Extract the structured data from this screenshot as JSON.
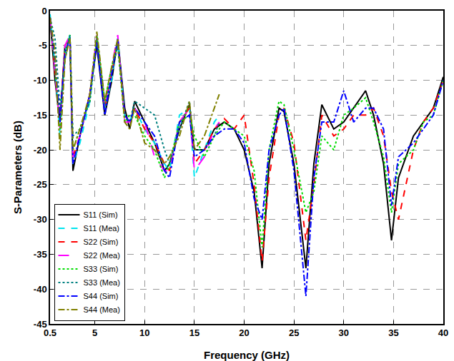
{
  "chart_data": {
    "type": "line",
    "x_label": "Frequency (GHz)",
    "y_label": "S-Parameters (dB)",
    "xlim": [
      0.5,
      40
    ],
    "xticks": [
      0.5,
      5,
      10,
      15,
      20,
      25,
      30,
      35,
      40
    ],
    "ylim": [
      -45,
      0
    ],
    "yticks": [
      -45,
      -40,
      -35,
      -30,
      -25,
      -20,
      -15,
      -10,
      -5,
      0
    ],
    "grid": true,
    "legend": "lower left",
    "series": [
      {
        "name": "S11 (Sim)",
        "color": "#000000",
        "line_style": "solid",
        "x": [
          0.5,
          1,
          1.5,
          2,
          2.5,
          2.8,
          3.5,
          4.5,
          5.2,
          6,
          6.7,
          7.3,
          8,
          8.5,
          9,
          10,
          11,
          12,
          12.5,
          13.5,
          14.5,
          15,
          16,
          17,
          18,
          19,
          20,
          21,
          21.8,
          22.5,
          23.5,
          24,
          25,
          26.2,
          27,
          27.8,
          29,
          30,
          31,
          32.2,
          33,
          34,
          34.8,
          35.5,
          37,
          38,
          39,
          40
        ],
        "values": [
          -1,
          -10,
          -16,
          -5,
          -4,
          -23,
          -18,
          -12,
          -5,
          -15,
          -10,
          -4,
          -14,
          -17,
          -13,
          -16,
          -19,
          -23,
          -22,
          -17,
          -13.5,
          -20,
          -20,
          -17,
          -16,
          -17,
          -20,
          -26,
          -37,
          -22,
          -14,
          -14.5,
          -22,
          -37,
          -22,
          -13.5,
          -17,
          -16,
          -14,
          -11.5,
          -15,
          -22,
          -33,
          -24,
          -18,
          -16,
          -14,
          -9.5
        ]
      },
      {
        "name": "S11 (Mea)",
        "color": "#00e5ee",
        "line_style": "dash",
        "x": [
          0.5,
          1,
          1.5,
          2,
          2.5,
          2.8,
          3.5,
          4.5,
          5.2,
          6,
          6.7,
          7.3,
          8,
          8.5,
          9,
          10,
          11,
          12,
          12.5,
          13.5,
          14.5,
          15,
          16,
          17,
          17.5
        ],
        "values": [
          -0.5,
          -8,
          -18,
          -6,
          -3.5,
          -22,
          -19,
          -13,
          -4,
          -14,
          -10,
          -4,
          -15,
          -16,
          -14,
          -17,
          -19,
          -22,
          -23,
          -15,
          -14,
          -24,
          -20,
          -16,
          -15
        ]
      },
      {
        "name": "S22 (Sim)",
        "color": "#ff0000",
        "line_style": "dash",
        "x": [
          0.5,
          1,
          1.5,
          2,
          2.5,
          2.8,
          3.5,
          4.5,
          5.2,
          6,
          6.7,
          7.3,
          8,
          8.5,
          9,
          10,
          11,
          12,
          12.5,
          13.5,
          14.5,
          15,
          16,
          17,
          18,
          19,
          20,
          21,
          21.8,
          22.5,
          23.5,
          24,
          25,
          26.2,
          27,
          27.8,
          29,
          30,
          31,
          32.2,
          33,
          34,
          34.8,
          35.5,
          37,
          38,
          39,
          40
        ],
        "values": [
          -1,
          -9,
          -15,
          -5,
          -4,
          -21,
          -18,
          -12,
          -4,
          -14,
          -9,
          -4.5,
          -15,
          -16,
          -14,
          -17,
          -19,
          -22,
          -23,
          -16,
          -14,
          -22,
          -20,
          -17,
          -15.5,
          -17,
          -15,
          -25,
          -36,
          -24,
          -15,
          -14,
          -19,
          -33,
          -25,
          -15,
          -18,
          -17,
          -15,
          -15,
          -14,
          -18,
          -26,
          -30,
          -20,
          -16,
          -14,
          -10
        ]
      },
      {
        "name": "S22 (Mea)",
        "color": "#ff00ff",
        "line_style": "longdash",
        "x": [
          0.5,
          1,
          1.5,
          2,
          2.5,
          2.8,
          3.5,
          4.5,
          5.2,
          6,
          6.7,
          7.3,
          8,
          8.5,
          9,
          10,
          11,
          12,
          12.5,
          13.5,
          14.5,
          15,
          16,
          17,
          17.5
        ],
        "values": [
          -1,
          -9,
          -17,
          -5,
          -3.5,
          -21,
          -18,
          -12,
          -3.5,
          -14,
          -8,
          -3.5,
          -16,
          -16,
          -14,
          -16,
          -21,
          -23,
          -23,
          -16,
          -14,
          -23,
          -21,
          -17,
          -16
        ]
      },
      {
        "name": "S33 (Sim)",
        "color": "#00dd00",
        "line_style": "dot",
        "x": [
          0.5,
          1,
          1.5,
          2,
          2.5,
          2.8,
          3.5,
          4.5,
          5.2,
          6,
          6.7,
          7.3,
          8,
          8.5,
          9,
          10,
          11,
          12,
          12.5,
          13.5,
          14.5,
          15,
          16,
          17,
          18,
          19,
          20,
          21,
          21.8,
          22.5,
          23.5,
          24,
          25,
          26.2,
          27,
          27.8,
          29,
          30,
          31,
          32.2,
          33,
          34,
          34.8,
          35.5,
          37,
          38,
          39,
          40
        ],
        "values": [
          -1,
          -8,
          -17,
          -6,
          -3.5,
          -20,
          -17,
          -13,
          -3.5,
          -13,
          -8,
          -5,
          -16,
          -15,
          -15,
          -18,
          -20,
          -24,
          -22,
          -16,
          -15,
          -18,
          -21,
          -18,
          -16,
          -17,
          -18,
          -23,
          -34,
          -20,
          -13,
          -13.5,
          -20,
          -29,
          -26,
          -18,
          -20,
          -15,
          -14,
          -12.5,
          -16,
          -21,
          -29,
          -22,
          -20,
          -16,
          -15,
          -10
        ]
      },
      {
        "name": "S33 (Mea)",
        "color": "#008080",
        "line_style": "dot",
        "x": [
          0.5,
          1,
          1.5,
          2,
          2.5,
          2.8,
          3.5,
          4.5,
          5.2,
          6,
          6.7,
          7.3,
          8,
          8.5,
          9,
          10,
          11,
          12,
          12.5,
          13.5,
          14.5,
          15,
          16,
          17,
          17.5
        ],
        "values": [
          -1,
          -4,
          -14,
          -7,
          -3.5,
          -18,
          -17,
          -13,
          -4,
          -14,
          -9,
          -5,
          -15,
          -16,
          -13,
          -14,
          -15,
          -20,
          -22,
          -17,
          -13,
          -20,
          -20,
          -18,
          -16
        ]
      },
      {
        "name": "S44 (Sim)",
        "color": "#0000ff",
        "line_style": "dashdot",
        "x": [
          0.5,
          1,
          1.5,
          2,
          2.5,
          2.8,
          3.5,
          4.5,
          5.2,
          6,
          6.7,
          7.3,
          8,
          8.5,
          9,
          10,
          11,
          12,
          12.5,
          13.5,
          14.5,
          15,
          16,
          17,
          18,
          19,
          20,
          21,
          21.8,
          22.5,
          23.5,
          24,
          25,
          26.2,
          27,
          27.8,
          29,
          30,
          31,
          32.2,
          33,
          34,
          34.8,
          35.5,
          37,
          38,
          39,
          40
        ],
        "values": [
          -1,
          -7,
          -16,
          -6,
          -4,
          -22,
          -18,
          -12,
          -4.5,
          -15,
          -9,
          -4,
          -15,
          -16,
          -14,
          -16,
          -18,
          -23,
          -24,
          -16,
          -15,
          -21,
          -20,
          -18,
          -17,
          -17,
          -19,
          -27,
          -30,
          -20,
          -15,
          -14,
          -23,
          -41,
          -24,
          -16,
          -16,
          -11.5,
          -16,
          -14,
          -14,
          -17,
          -28,
          -21,
          -19,
          -17,
          -15,
          -10
        ]
      },
      {
        "name": "S44 (Mea)",
        "color": "#808000",
        "line_style": "dashdot",
        "x": [
          0.5,
          1,
          1.5,
          2,
          2.5,
          2.8,
          3.5,
          4.5,
          5.2,
          6,
          6.7,
          7.3,
          8,
          8.5,
          9,
          10,
          11,
          12,
          12.5,
          13.5,
          14.5,
          15,
          16,
          17,
          17.5
        ],
        "values": [
          -1,
          -6,
          -20,
          -7,
          -4,
          -20,
          -17,
          -12,
          -3,
          -13,
          -8,
          -4,
          -16,
          -17,
          -14,
          -19,
          -20,
          -22,
          -21,
          -18,
          -13,
          -20,
          -18,
          -14,
          -12
        ]
      }
    ]
  }
}
